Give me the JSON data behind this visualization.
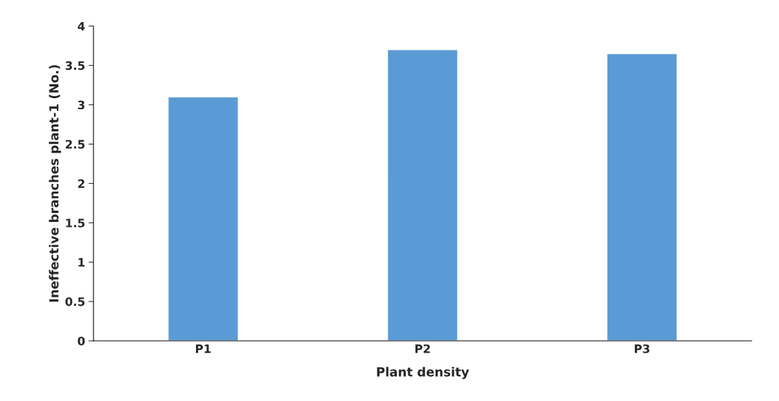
{
  "chart_data": {
    "type": "bar",
    "xlabel": "Plant density",
    "ylabel": "Ineffective branches plant-1 (No.)",
    "categories": [
      "P1",
      "P2",
      "P3"
    ],
    "series": [
      {
        "color": "#5b9bd5",
        "values": [
          3.1,
          3.7,
          3.65
        ]
      }
    ],
    "ylim": [
      0,
      4
    ],
    "yticks": [
      0,
      0.5,
      1,
      1.5,
      2,
      2.5,
      3,
      3.5,
      4
    ],
    "grid": false
  }
}
